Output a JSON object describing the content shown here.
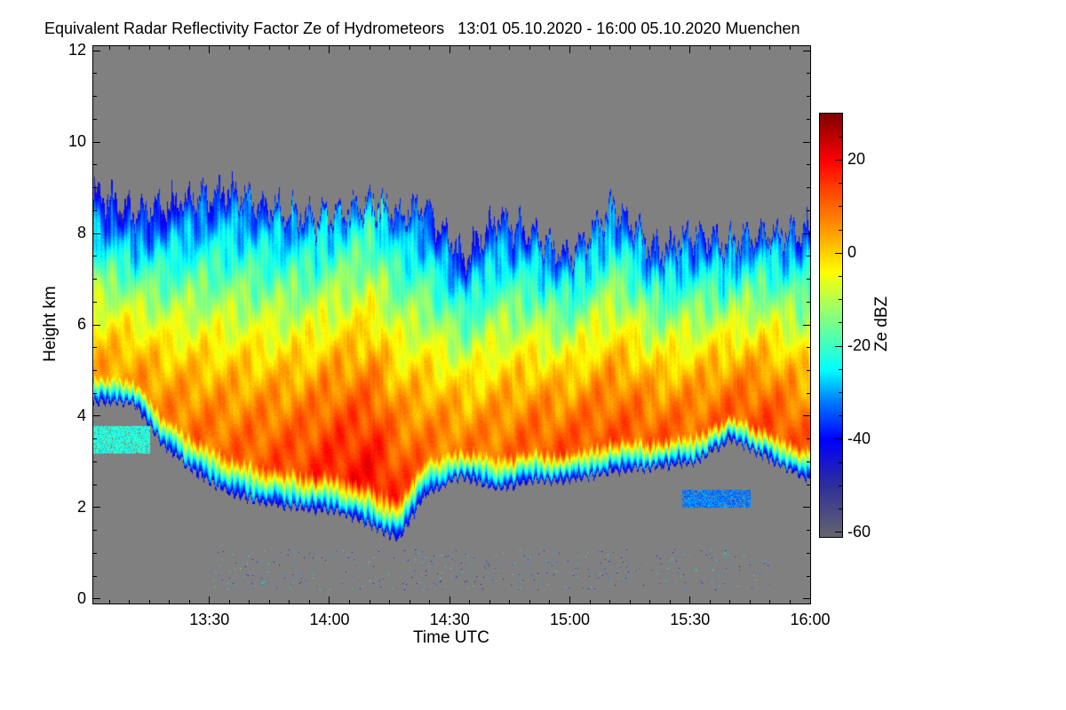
{
  "chart_data": {
    "type": "heatmap",
    "title": "Equivalent Radar Reflectivity Factor Ze of Hydrometeors   13:01 05.10.2020 - 16:00 05.10.2020 Muenchen",
    "xlabel": "Time UTC",
    "ylabel": "Height km",
    "colorbar_label": "Ze dBZ",
    "x_unit": "minutes after 13:00 UTC",
    "xlim": [
      1,
      180
    ],
    "ylim": [
      -0.1,
      12.1
    ],
    "clim": [
      -61,
      30
    ],
    "x_ticks": [
      {
        "v": 30,
        "label": "13:30"
      },
      {
        "v": 60,
        "label": "14:00"
      },
      {
        "v": 90,
        "label": "14:30"
      },
      {
        "v": 120,
        "label": "15:00"
      },
      {
        "v": 150,
        "label": "15:30"
      },
      {
        "v": 180,
        "label": "16:00"
      }
    ],
    "y_ticks": [
      {
        "v": 0,
        "label": "0"
      },
      {
        "v": 2,
        "label": "2"
      },
      {
        "v": 4,
        "label": "4"
      },
      {
        "v": 6,
        "label": "6"
      },
      {
        "v": 8,
        "label": "8"
      },
      {
        "v": 10,
        "label": "10"
      },
      {
        "v": 12,
        "label": "12"
      }
    ],
    "c_ticks": [
      {
        "v": -60,
        "label": "-60"
      },
      {
        "v": -40,
        "label": "-40"
      },
      {
        "v": -20,
        "label": "-20"
      },
      {
        "v": 0,
        "label": "0"
      },
      {
        "v": 20,
        "label": "20"
      }
    ],
    "no_data_color": "#808080",
    "colormap": [
      {
        "v": -61,
        "color": "#66666e"
      },
      {
        "v": -50,
        "color": "#30309a"
      },
      {
        "v": -40,
        "color": "#0000ff"
      },
      {
        "v": -32,
        "color": "#0078ff"
      },
      {
        "v": -25,
        "color": "#00ffff"
      },
      {
        "v": -12,
        "color": "#9cff6a"
      },
      {
        "v": -4,
        "color": "#ffff00"
      },
      {
        "v": 5,
        "color": "#ff9a00"
      },
      {
        "v": 14,
        "color": "#ff4000"
      },
      {
        "v": 20,
        "color": "#ff0000"
      },
      {
        "v": 30,
        "color": "#800000"
      }
    ],
    "cloud_profile": {
      "time_min": [
        1,
        11,
        18,
        26,
        35,
        44,
        53,
        62,
        71,
        77,
        84,
        93,
        102,
        111,
        120,
        131,
        142,
        151,
        160,
        169,
        180
      ],
      "cloud_top_km": [
        8.9,
        8.5,
        8.6,
        8.8,
        8.9,
        8.6,
        8.4,
        8.4,
        8.7,
        8.4,
        8.6,
        7.5,
        8.3,
        8.0,
        7.5,
        8.6,
        7.6,
        8.0,
        7.8,
        8.0,
        8.1
      ],
      "cloud_base_km": [
        4.3,
        4.3,
        3.4,
        2.8,
        2.3,
        2.1,
        2.0,
        1.9,
        1.6,
        1.3,
        2.3,
        2.7,
        2.4,
        2.6,
        2.6,
        2.8,
        2.9,
        3.0,
        3.5,
        3.1,
        2.6
      ],
      "max_dbz": [
        4,
        5,
        7,
        9,
        10,
        12,
        14,
        17,
        19,
        14,
        9,
        8,
        9,
        11,
        12,
        12,
        11,
        10,
        11,
        13,
        11
      ]
    },
    "secondary_echoes": [
      {
        "time_min": [
          1,
          15
        ],
        "height_km": [
          3.2,
          3.8
        ],
        "dbz": -22
      },
      {
        "time_min": [
          148,
          165
        ],
        "height_km": [
          2.0,
          2.4
        ],
        "dbz": -32
      }
    ]
  }
}
